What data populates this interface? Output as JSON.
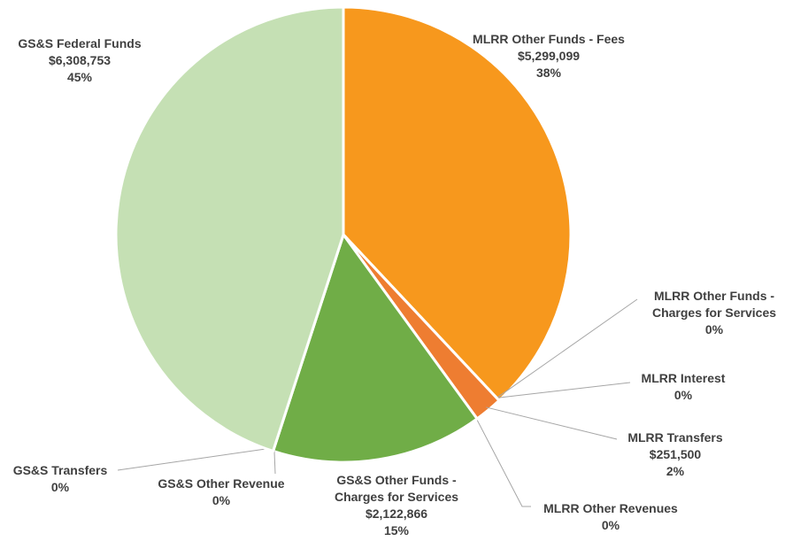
{
  "chart_data": {
    "type": "pie",
    "categories": [
      "MLRR Other Funds - Fees",
      "MLRR Other Funds - Charges for Services",
      "MLRR Interest",
      "MLRR Transfers",
      "MLRR Other Revenues",
      "GS&S Other Funds - Charges for Services",
      "GS&S Other Revenue",
      "GS&S Transfers",
      "GS&S Federal Funds"
    ],
    "values": [
      38,
      0,
      0,
      2,
      0,
      15,
      0,
      0,
      45
    ],
    "value_labels": [
      "38%",
      "0%",
      "0%",
      "2%",
      "0%",
      "15%",
      "0%",
      "0%",
      "45%"
    ],
    "amounts": [
      "$5,299,099",
      null,
      null,
      "$251,500",
      null,
      "$2,122,866",
      null,
      null,
      "$6,308,753"
    ],
    "colors": [
      "#f7981d",
      "#ee7d31",
      "#ee7d31",
      "#ee7d31",
      "#ee7d31",
      "#70ad47",
      "#c5e0b4",
      "#c5e0b4",
      "#c5e0b4"
    ]
  }
}
